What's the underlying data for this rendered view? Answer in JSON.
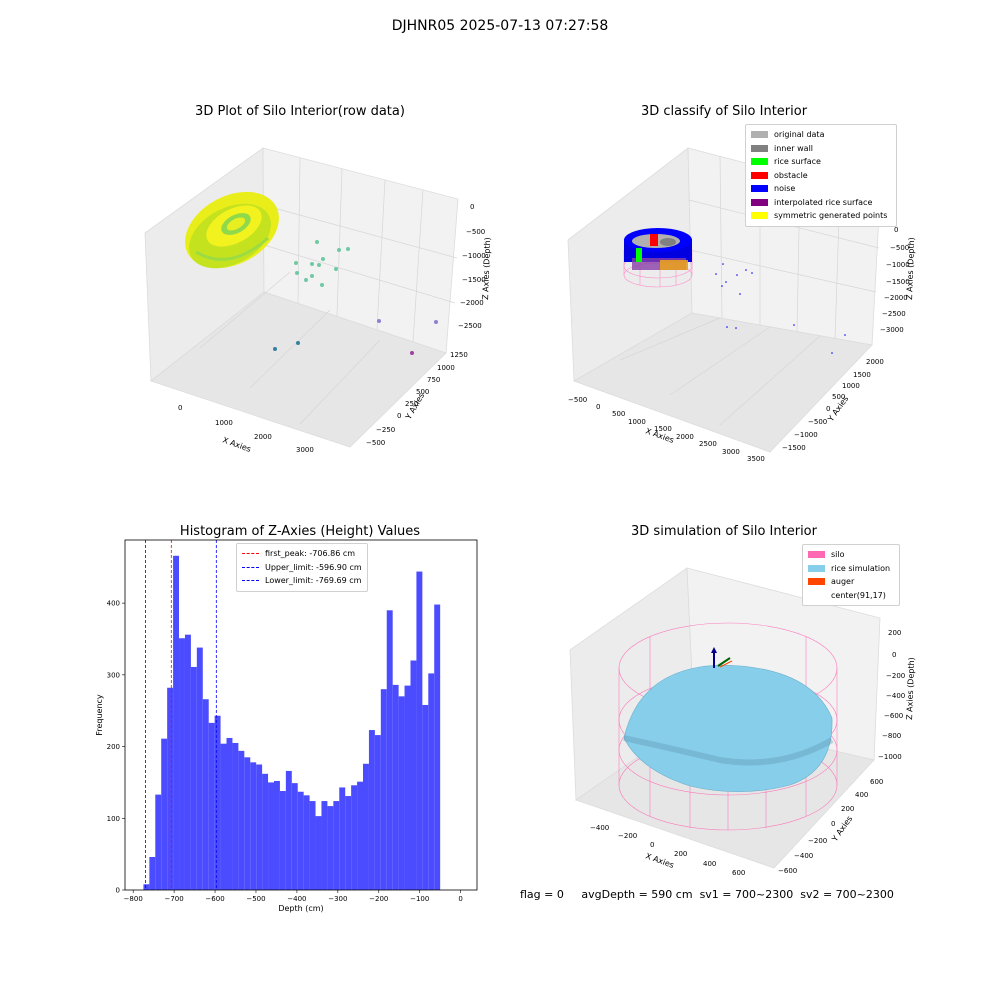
{
  "page_title": "DJHNR05 2025-07-13 07:27:58",
  "footer": {
    "flag": "flag = 0",
    "avg_depth": "avgDepth = 590 cm",
    "sv1": "sv1 = 700~2300",
    "sv2": "sv2 = 700~2300"
  },
  "chart_data": [
    {
      "type": "scatter",
      "title": "3D Plot of Silo Interior(row data)",
      "xlabel": "X Axies",
      "ylabel": "Y Axies",
      "zlabel": "Z Axies (Depth)",
      "x_ticks": [
        "0",
        "1000",
        "2000",
        "3000"
      ],
      "y_ticks": [
        "1250",
        "1000",
        "750",
        "500",
        "250",
        "0",
        "−250",
        "−500"
      ],
      "z_ticks": [
        "0",
        "−500",
        "−1000",
        "−1500",
        "−2000",
        "−2500"
      ],
      "colors": {
        "main": "#d8e21a",
        "accent": "#7ed957",
        "sparse": [
          "#6fc9a3",
          "#3a7fa0",
          "#8f7fd0",
          "#a040a0"
        ]
      }
    },
    {
      "type": "scatter",
      "title": "3D classify of Silo Interior",
      "xlabel": "X Axies",
      "ylabel": "Y Axies",
      "zlabel": "Z Axies (Depth)",
      "x_ticks": [
        "−500",
        "0",
        "500",
        "1000",
        "1500",
        "2000",
        "2500",
        "3000",
        "3500"
      ],
      "y_ticks": [
        "2000",
        "1500",
        "1000",
        "500",
        "0",
        "−500",
        "−1000",
        "−1500"
      ],
      "z_ticks": [
        "0",
        "−500",
        "−1000",
        "−1500",
        "−2000",
        "−2500",
        "−3000"
      ],
      "legend": [
        {
          "label": "original data",
          "color": "#b0b0b0"
        },
        {
          "label": "inner wall",
          "color": "#808080"
        },
        {
          "label": "rice surface",
          "color": "#00ff00"
        },
        {
          "label": "obstacle",
          "color": "#ff0000"
        },
        {
          "label": "noise",
          "color": "#0000ff"
        },
        {
          "label": "interpolated rice surface",
          "color": "#800080"
        },
        {
          "label": "symmetric generated points",
          "color": "#ffff00"
        }
      ],
      "legend_position": "top-right"
    },
    {
      "type": "bar",
      "title": "Histogram of Z-Axies (Height) Values",
      "xlabel": "Depth (cm)",
      "ylabel": "Frequency",
      "bin_start": -775,
      "bin_width": 14.5,
      "values": [
        8,
        46,
        133,
        211,
        282,
        466,
        351,
        356,
        311,
        338,
        266,
        233,
        243,
        204,
        212,
        205,
        194,
        185,
        178,
        175,
        162,
        150,
        152,
        138,
        166,
        149,
        137,
        132,
        124,
        103,
        124,
        117,
        124,
        143,
        131,
        146,
        151,
        176,
        223,
        216,
        280,
        390,
        286,
        270,
        285,
        320,
        444,
        258,
        302,
        398
      ],
      "xlim": [
        -820,
        40
      ],
      "ylim": [
        0,
        488
      ],
      "x_ticks": [
        -800,
        -700,
        -600,
        -500,
        -400,
        -300,
        -200,
        -100,
        0
      ],
      "y_ticks": [
        0,
        100,
        200,
        300,
        400
      ],
      "color": "#4b4bff",
      "lines": [
        {
          "label": "first_peak: -706.86 cm",
          "x": -706.86,
          "color": "#ff0000"
        },
        {
          "label": "Upper_limit: -596.90 cm",
          "x": -596.9,
          "color": "#0000ff"
        },
        {
          "label": "Lower_limit: -769.69 cm",
          "x": -769.69,
          "color": "#0000ff"
        }
      ],
      "legend_position": "top-center"
    },
    {
      "type": "surface",
      "title": "3D simulation of Silo Interior",
      "xlabel": "X Axies",
      "ylabel": "Y Axies",
      "zlabel": "Z Axies (Depth)",
      "x_ticks": [
        "−400",
        "−200",
        "0",
        "200",
        "400",
        "600"
      ],
      "y_ticks": [
        "600",
        "400",
        "200",
        "0",
        "−200",
        "−400",
        "−600"
      ],
      "z_ticks": [
        "200",
        "0",
        "−200",
        "−400",
        "−600",
        "−800",
        "−1000"
      ],
      "legend": [
        {
          "label": "silo",
          "color": "#ff69b4"
        },
        {
          "label": "rice simulation",
          "color": "#87ceeb"
        },
        {
          "label": "auger",
          "color": "#ff4500"
        },
        {
          "label": "center(91,17)",
          "color": "#ffffff"
        }
      ],
      "legend_position": "top-right"
    }
  ]
}
